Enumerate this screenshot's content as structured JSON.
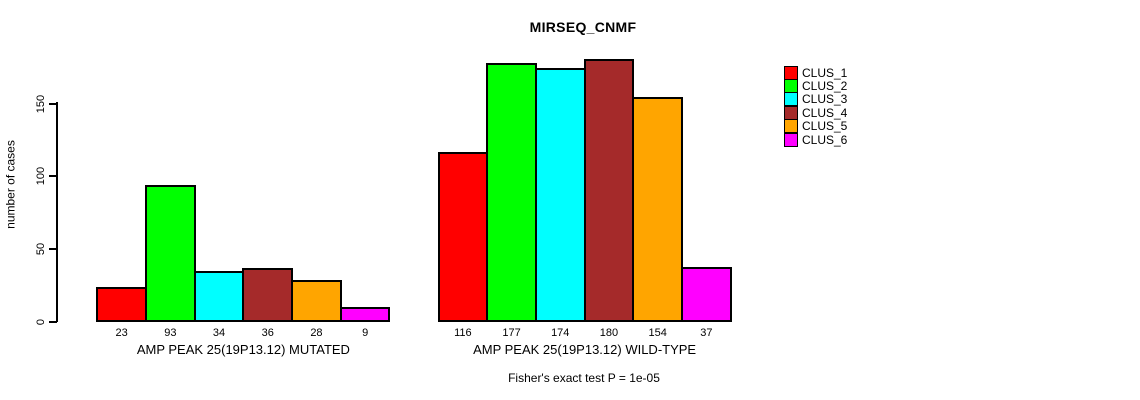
{
  "chart_data": {
    "type": "bar",
    "title": "MIRSEQ_CNMF",
    "ylabel": "number of cases",
    "xlabel": "",
    "ylim": [
      0,
      180
    ],
    "yticks": [
      0,
      50,
      100,
      150
    ],
    "grid": false,
    "legend_position": "right",
    "categories": [
      "CLUS_1",
      "CLUS_2",
      "CLUS_3",
      "CLUS_4",
      "CLUS_5",
      "CLUS_6"
    ],
    "series_colors": [
      "#FF0000",
      "#00FF00",
      "#00FFFF",
      "#A52A2A",
      "#FFA500",
      "#FF00FF"
    ],
    "groups": [
      {
        "label": "AMP PEAK 25(19P13.12) MUTATED",
        "values": [
          23,
          93,
          34,
          36,
          28,
          9
        ]
      },
      {
        "label": "AMP PEAK 25(19P13.12) WILD-TYPE",
        "values": [
          116,
          177,
          174,
          180,
          154,
          37
        ]
      }
    ],
    "legend": [
      {
        "label": "CLUS_1",
        "color": "#FF0000"
      },
      {
        "label": "CLUS_2",
        "color": "#00FF00"
      },
      {
        "label": "CLUS_3",
        "color": "#00FFFF"
      },
      {
        "label": "CLUS_4",
        "color": "#A52A2A"
      },
      {
        "label": "CLUS_5",
        "color": "#FFA500"
      },
      {
        "label": "CLUS_6",
        "color": "#FF00FF"
      }
    ],
    "annotation": "Fisher's exact test P = 1e-05"
  }
}
